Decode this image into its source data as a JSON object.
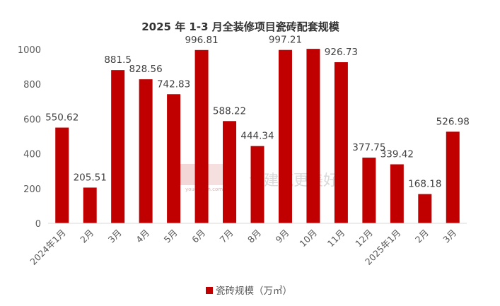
{
  "chart_data": {
    "type": "bar",
    "title": "2025 年 1-3 月全装修项目瓷砖配套规模",
    "categories": [
      "2024年1月",
      "2月",
      "3月",
      "4月",
      "5月",
      "6月",
      "7月",
      "8月",
      "9月",
      "10月",
      "11月",
      "12月",
      "2025年1月",
      "2月",
      "3月"
    ],
    "series": [
      {
        "name": "瓷砖规模（万㎡）",
        "values": [
          550.62,
          205.51,
          881.5,
          828.56,
          742.83,
          996.81,
          588.22,
          444.34,
          997.21,
          1003.5,
          926.73,
          377.75,
          339.42,
          168.18,
          526.98
        ],
        "data_labels": [
          "550.62",
          "205.51",
          "881.5",
          "828.56",
          "742.83",
          "996.81",
          "588.22",
          "444.34",
          "997.21",
          "",
          "926.73",
          "377.75",
          "339.42",
          "168.18",
          "526.98"
        ]
      }
    ],
    "yticks": [
      "0",
      "200",
      "400",
      "600",
      "800",
      "1000"
    ],
    "ylim": [
      0,
      1000
    ],
    "grid": false,
    "legend_position": "bottom",
    "bar_color": "#c00000"
  },
  "watermark": {
    "text": "让建筑更美好",
    "small": "youcaiyun.com"
  }
}
